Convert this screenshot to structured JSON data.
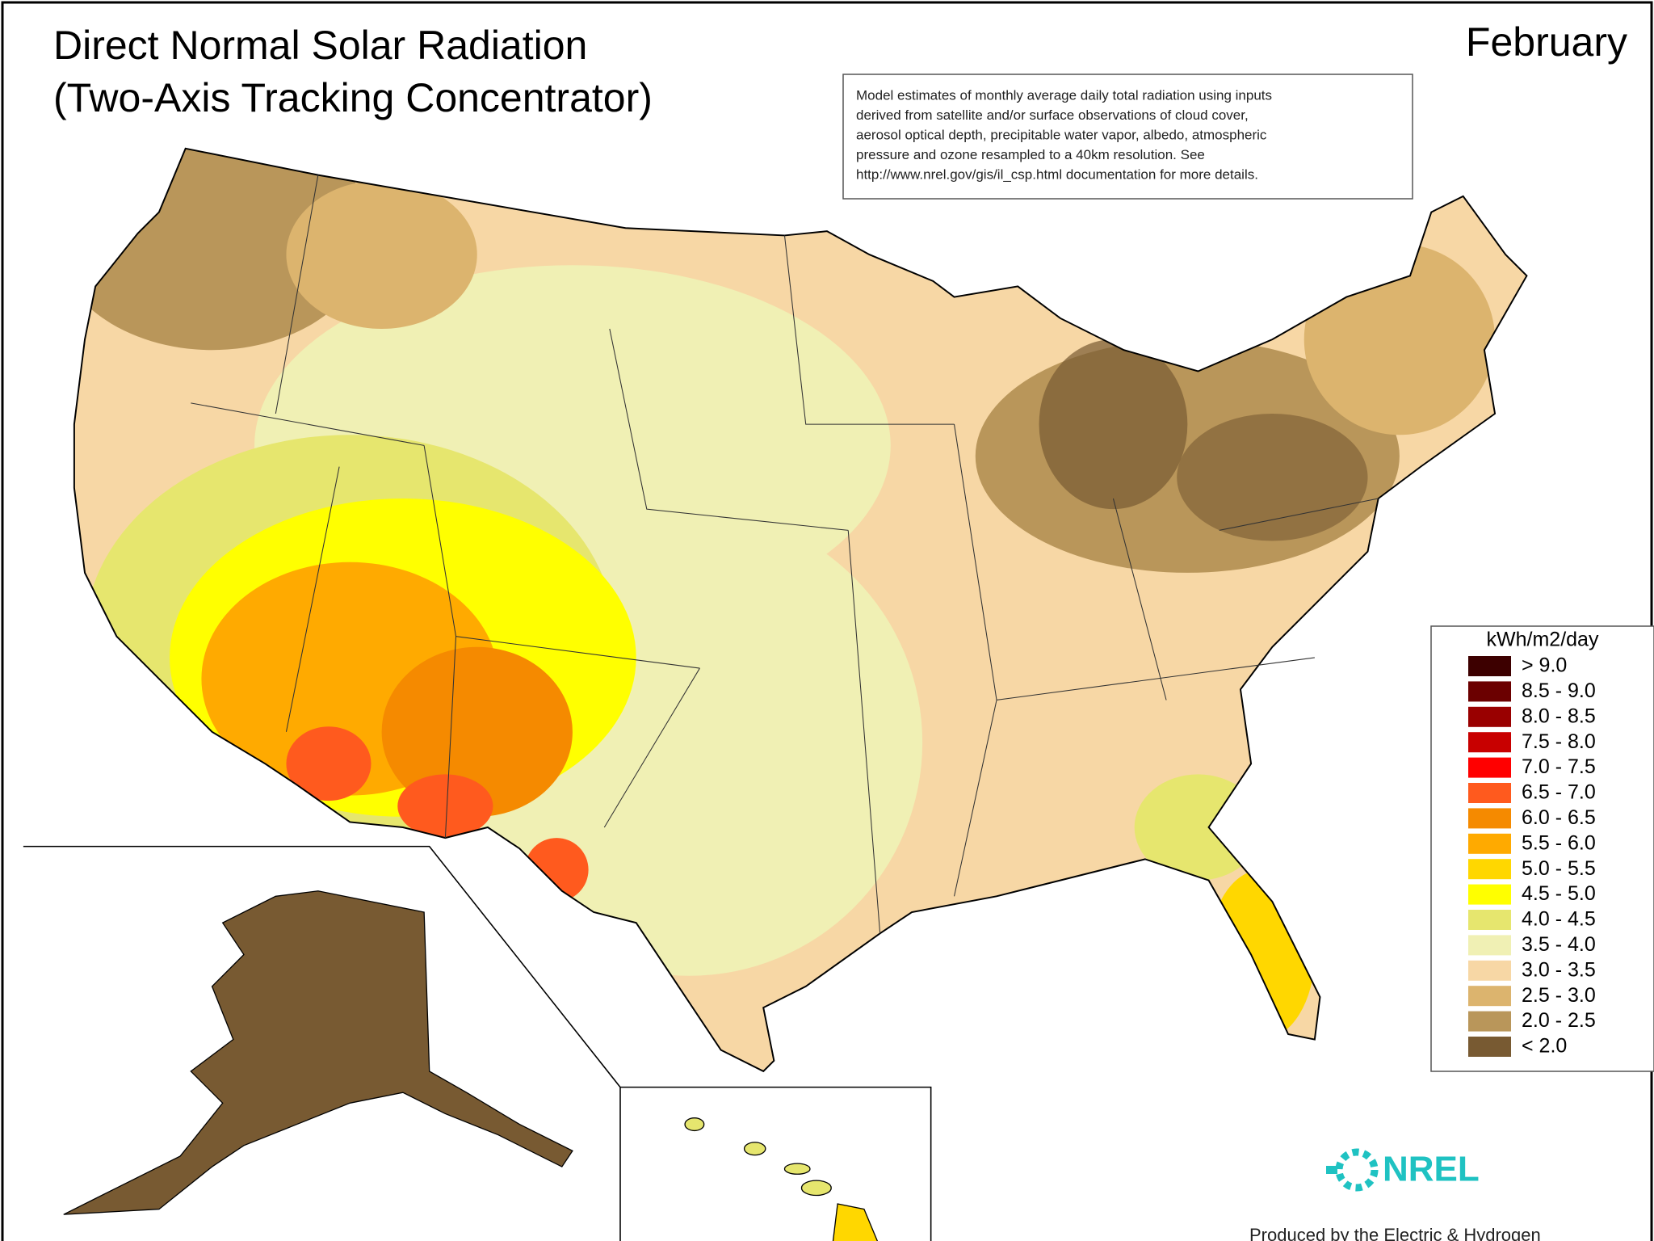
{
  "header": {
    "title": [
      "Direct Normal Solar Radiation",
      "(Two-Axis Tracking Concentrator)"
    ],
    "month": "February"
  },
  "note": [
    "Model estimates of monthly average daily total radiation using inputs",
    "derived from satellite and/or surface observations of cloud cover,",
    "aerosol optical depth, precipitable water vapor, albedo, atmospheric",
    "pressure and ozone resampled to a 40km resolution.  See",
    "http://www.nrel.gov/gis/il_csp.html documentation for more details."
  ],
  "legend": {
    "title": "kWh/m2/day",
    "items": [
      {
        "label": "> 9.0",
        "color": "#3d0000"
      },
      {
        "label": "8.5 - 9.0",
        "color": "#6b0000"
      },
      {
        "label": "8.0 - 8.5",
        "color": "#990000"
      },
      {
        "label": "7.5 - 8.0",
        "color": "#c80000"
      },
      {
        "label": "7.0 - 7.5",
        "color": "#ff0000"
      },
      {
        "label": "6.5 - 7.0",
        "color": "#ff5a1e"
      },
      {
        "label": "6.0 - 6.5",
        "color": "#f58a00"
      },
      {
        "label": "5.5 - 6.0",
        "color": "#ffaa00"
      },
      {
        "label": "5.0 - 5.5",
        "color": "#ffd700"
      },
      {
        "label": "4.5 - 5.0",
        "color": "#ffff00"
      },
      {
        "label": "4.0 - 4.5",
        "color": "#e6e66e"
      },
      {
        "label": "3.5 - 4.0",
        "color": "#f0f0b4"
      },
      {
        "label": "3.0 - 3.5",
        "color": "#f7d7a5"
      },
      {
        "label": "2.5 - 3.0",
        "color": "#dcb46e"
      },
      {
        "label": "2.0 - 2.5",
        "color": "#b9965a"
      },
      {
        "label": "< 2.0",
        "color": "#785a32"
      }
    ]
  },
  "logo": "NREL",
  "footer": "Produced by the Electric & Hydrogen"
}
